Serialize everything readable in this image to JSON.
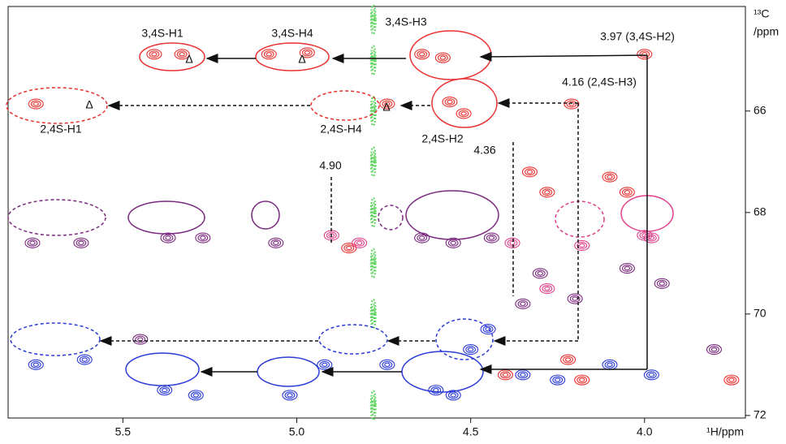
{
  "chart_data": {
    "type": "scatter",
    "xlabel": "¹H/ppm",
    "ylabel": [
      "¹³C",
      "/ppm"
    ],
    "xlim": [
      5.83,
      3.71
    ],
    "ylim": [
      63.94,
      72.05
    ],
    "x_inverted": true,
    "y_inverted": true,
    "xticks": [
      5.5,
      {
        "value": 5,
        "label": "5.0"
      },
      4.5,
      {
        "value": 4,
        "label": "4.0"
      }
    ],
    "yticks": [
      66,
      68,
      70,
      72
    ],
    "series": [
      {
        "color": "#e8312f",
        "x": [
          5.41,
          5.33,
          5.08,
          4.97,
          4.64,
          4.58,
          5.75,
          4.74,
          4.56,
          4.52,
          4.21,
          4.33,
          4.28,
          4.1,
          4.05,
          4.0,
          4.22,
          4.18,
          4.4,
          3.75,
          4.85
        ],
        "y": [
          64.88,
          64.88,
          64.88,
          64.85,
          64.88,
          64.95,
          65.86,
          65.86,
          65.82,
          66.05,
          65.86,
          67.2,
          67.6,
          67.3,
          67.6,
          64.88,
          70.9,
          71.3,
          71.2,
          71.3,
          68.7
        ]
      },
      {
        "color": "#7b2a7f",
        "x": [
          5.76,
          5.62,
          5.37,
          5.27,
          5.06,
          4.64,
          4.55,
          4.44,
          4.3,
          4.05,
          3.95,
          4.2,
          4.35,
          5.45,
          3.8
        ],
        "y": [
          68.6,
          68.6,
          68.5,
          68.5,
          68.6,
          68.5,
          68.6,
          68.5,
          69.2,
          69.1,
          69.4,
          69.7,
          69.8,
          70.5,
          70.7
        ]
      },
      {
        "color": "#2b3bd6",
        "x": [
          5.75,
          5.61,
          5.38,
          5.29,
          5.02,
          4.92,
          4.74,
          4.6,
          4.55,
          4.5,
          4.35,
          4.25,
          4.1,
          3.98,
          4.45
        ],
        "y": [
          71.0,
          70.9,
          71.5,
          71.6,
          71.6,
          71.0,
          71.0,
          71.5,
          71.6,
          70.7,
          71.2,
          71.3,
          71.0,
          71.2,
          70.3
        ]
      },
      {
        "color": "#e0408a",
        "x": [
          4.9,
          4.82,
          4.38,
          4.18,
          3.98,
          4.0,
          4.28
        ],
        "y": [
          68.45,
          68.6,
          68.6,
          68.65,
          68.5,
          68.45,
          69.5
        ]
      },
      {
        "color": "#5fd35f",
        "x": [
          4.78,
          4.78,
          4.78,
          4.78,
          4.78,
          4.78,
          4.78,
          4.78
        ],
        "y": [
          64.2,
          65.0,
          66.0,
          67.0,
          68.0,
          69.0,
          70.0,
          71.8
        ]
      }
    ],
    "annotations": [
      "3,4S-H1",
      "3,4S-H4",
      "3,4S-H3",
      "3.97 (3,4S-H2)",
      "2,4S-H1",
      "2,4S-H4",
      "2,4S-H2",
      "4.16 (2,4S-H3)",
      "4.36",
      "4.90",
      "Δ",
      "Δ",
      "Δ",
      "Δ"
    ]
  }
}
